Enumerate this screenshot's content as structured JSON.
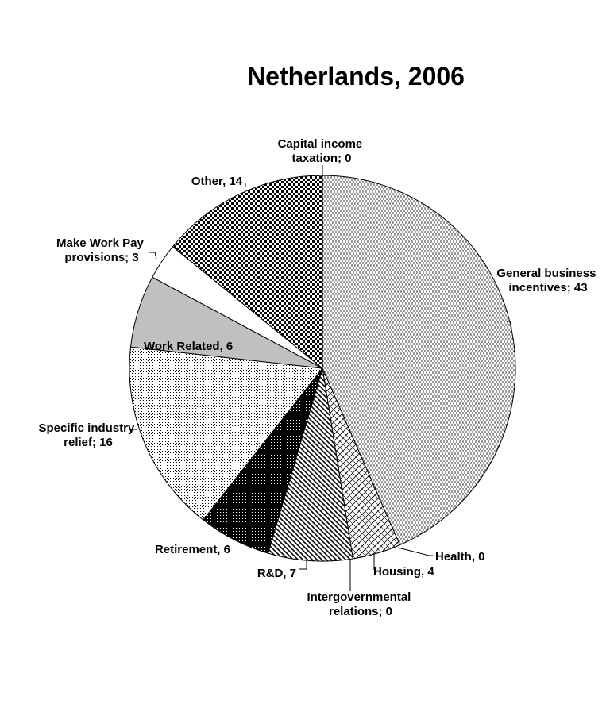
{
  "chart_data": {
    "type": "pie",
    "title": "Netherlands, 2006",
    "start": "top",
    "direction": "clockwise",
    "slices": [
      {
        "key": "capital",
        "label": "Capital income taxation",
        "display": [
          "Capital income",
          "taxation; 0"
        ],
        "value": 0,
        "pattern": "none",
        "fill": "#ffffff"
      },
      {
        "key": "general",
        "label": "General business incentives",
        "display": [
          "General business",
          "incentives; 43"
        ],
        "value": 43,
        "pattern": "vdash",
        "fill": "#ffffff"
      },
      {
        "key": "health",
        "label": "Health",
        "display": [
          "Health, 0"
        ],
        "value": 0,
        "pattern": "none",
        "fill": "#ffffff"
      },
      {
        "key": "housing",
        "label": "Housing",
        "display": [
          "Housing, 4"
        ],
        "value": 4,
        "pattern": "hatch-cross",
        "fill": "#ffffff"
      },
      {
        "key": "intergov",
        "label": "Intergovernmental relations",
        "display": [
          "Intergovernmental",
          "relations; 0"
        ],
        "value": 0,
        "pattern": "none",
        "fill": "#ffffff"
      },
      {
        "key": "rd",
        "label": "R&D",
        "display": [
          "R&D, 7"
        ],
        "value": 7,
        "pattern": "diag",
        "fill": "#ffffff"
      },
      {
        "key": "retirement",
        "label": "Retirement",
        "display": [
          "Retirement, 6"
        ],
        "value": 6,
        "pattern": "dense-dots",
        "fill": "#000000"
      },
      {
        "key": "specific",
        "label": "Specific industry relief",
        "display": [
          "Specific industry",
          "relief; 16"
        ],
        "value": 16,
        "pattern": "dots",
        "fill": "#ffffff"
      },
      {
        "key": "work",
        "label": "Work Related",
        "display": [
          "Work Related, 6"
        ],
        "value": 6,
        "pattern": "solid",
        "fill": "#c0c0c0"
      },
      {
        "key": "mwp",
        "label": "Make Work Pay provisions",
        "display": [
          "Make Work Pay",
          "provisions; 3"
        ],
        "value": 3,
        "pattern": "solid",
        "fill": "#ffffff"
      },
      {
        "key": "other",
        "label": "Other",
        "display": [
          "Other, 14"
        ],
        "value": 14,
        "pattern": "checker",
        "fill": "#ffffff"
      }
    ]
  }
}
